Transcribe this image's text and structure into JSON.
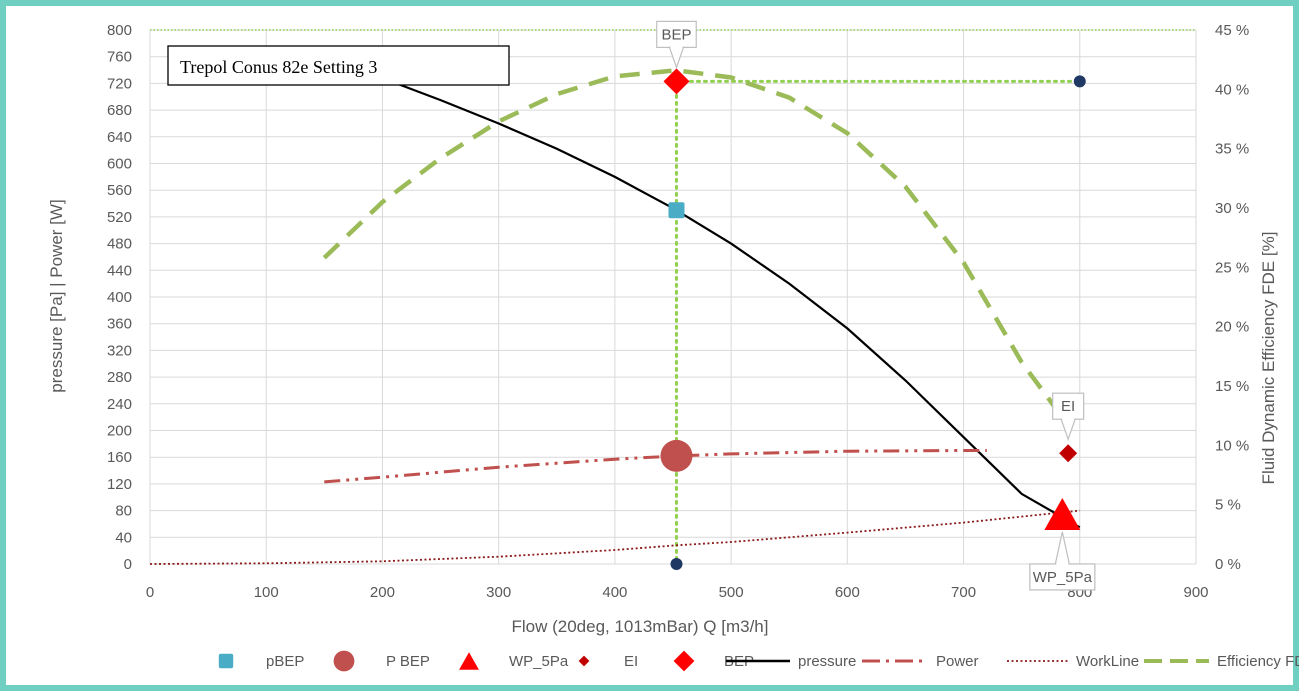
{
  "chart_data": {
    "type": "line",
    "title": "Trepol Conus 82e Setting 3",
    "xlabel": "Flow (20deg, 1013mBar) Q [m3/h]",
    "ylabel": "pressure [Pa]   |    Power [W]",
    "y2label": "Fluid Dynamic  Efficiency FDE  [%]",
    "xlim": [
      0,
      900
    ],
    "ylim": [
      0,
      800
    ],
    "y2lim": [
      0,
      45
    ],
    "x_ticks": [
      "0",
      "100",
      "200",
      "300",
      "400",
      "500",
      "600",
      "700",
      "800",
      "900"
    ],
    "y_ticks": [
      "0",
      "40",
      "80",
      "120",
      "160",
      "200",
      "240",
      "280",
      "320",
      "360",
      "400",
      "440",
      "480",
      "520",
      "560",
      "600",
      "640",
      "680",
      "720",
      "760",
      "800"
    ],
    "y2_ticks": [
      "0 %",
      "5 %",
      "10 %",
      "15 %",
      "20 %",
      "25 %",
      "30 %",
      "35 %",
      "40 %",
      "45 %"
    ],
    "grid": true,
    "legend_position": "bottom",
    "series": [
      {
        "name": "pBEP",
        "kind": "marker-square",
        "color": "#4bacc6",
        "points": [
          [
            453,
            530
          ]
        ]
      },
      {
        "name": "P BEP",
        "kind": "marker-circle",
        "color": "#c0504d",
        "points": [
          [
            453,
            162
          ]
        ]
      },
      {
        "name": "WP_5Pa",
        "kind": "marker-triangle",
        "color": "#ff0000",
        "points": [
          [
            785,
            75
          ]
        ]
      },
      {
        "name": "EI",
        "kind": "marker-diamond-small",
        "color": "#c00000",
        "points": [
          [
            790,
            166
          ]
        ]
      },
      {
        "name": "BEP",
        "kind": "marker-diamond",
        "color": "#ff0000",
        "points": [
          [
            453,
            723
          ]
        ]
      },
      {
        "name": "pressure",
        "kind": "line",
        "color": "#000000",
        "points": [
          [
            150,
            760
          ],
          [
            200,
            728
          ],
          [
            250,
            695
          ],
          [
            300,
            660
          ],
          [
            350,
            622
          ],
          [
            400,
            580
          ],
          [
            450,
            533
          ],
          [
            500,
            480
          ],
          [
            550,
            420
          ],
          [
            600,
            353
          ],
          [
            650,
            275
          ],
          [
            700,
            190
          ],
          [
            750,
            105
          ],
          [
            800,
            55
          ]
        ]
      },
      {
        "name": "Power",
        "kind": "dashdotdot",
        "color": "#c0504d",
        "points": [
          [
            150,
            123
          ],
          [
            200,
            130
          ],
          [
            300,
            145
          ],
          [
            400,
            157
          ],
          [
            453,
            162
          ],
          [
            500,
            165
          ],
          [
            600,
            169
          ],
          [
            700,
            170
          ],
          [
            720,
            170
          ]
        ]
      },
      {
        "name": "WorkLine",
        "kind": "dotted",
        "color": "#8b1a1a",
        "points": [
          [
            0,
            0
          ],
          [
            100,
            1
          ],
          [
            200,
            4
          ],
          [
            300,
            11
          ],
          [
            400,
            21
          ],
          [
            453,
            28
          ],
          [
            500,
            33
          ],
          [
            600,
            47
          ],
          [
            700,
            62
          ],
          [
            800,
            80
          ]
        ]
      },
      {
        "name": "Efficiency FDE",
        "kind": "dashed",
        "color": "#9bbb59",
        "axis": "secondary",
        "points": [
          [
            150,
            25.8
          ],
          [
            200,
            30.5
          ],
          [
            250,
            34.2
          ],
          [
            300,
            37.3
          ],
          [
            350,
            39.6
          ],
          [
            400,
            41.1
          ],
          [
            453,
            41.6
          ],
          [
            500,
            41.0
          ],
          [
            550,
            39.3
          ],
          [
            600,
            36.3
          ],
          [
            650,
            31.8
          ],
          [
            700,
            25.4
          ],
          [
            750,
            17.0
          ],
          [
            790,
            11.7
          ]
        ]
      }
    ],
    "guide_lines": {
      "color": "#92d050",
      "horizontal_top": 800,
      "bep_x": 453,
      "bep_level_y": 723,
      "bep_level_x_end": 800
    },
    "extra_points": [
      {
        "x": 453,
        "y": 0,
        "color": "#1f3864"
      },
      {
        "x": 800,
        "y": 723,
        "color": "#1f3864"
      }
    ],
    "annotations": [
      {
        "label": "BEP",
        "x": 453,
        "y": 723
      },
      {
        "label": "EI",
        "x": 790,
        "y": 166
      },
      {
        "label": "WP_5Pa",
        "x": 785,
        "y": 75
      }
    ]
  }
}
